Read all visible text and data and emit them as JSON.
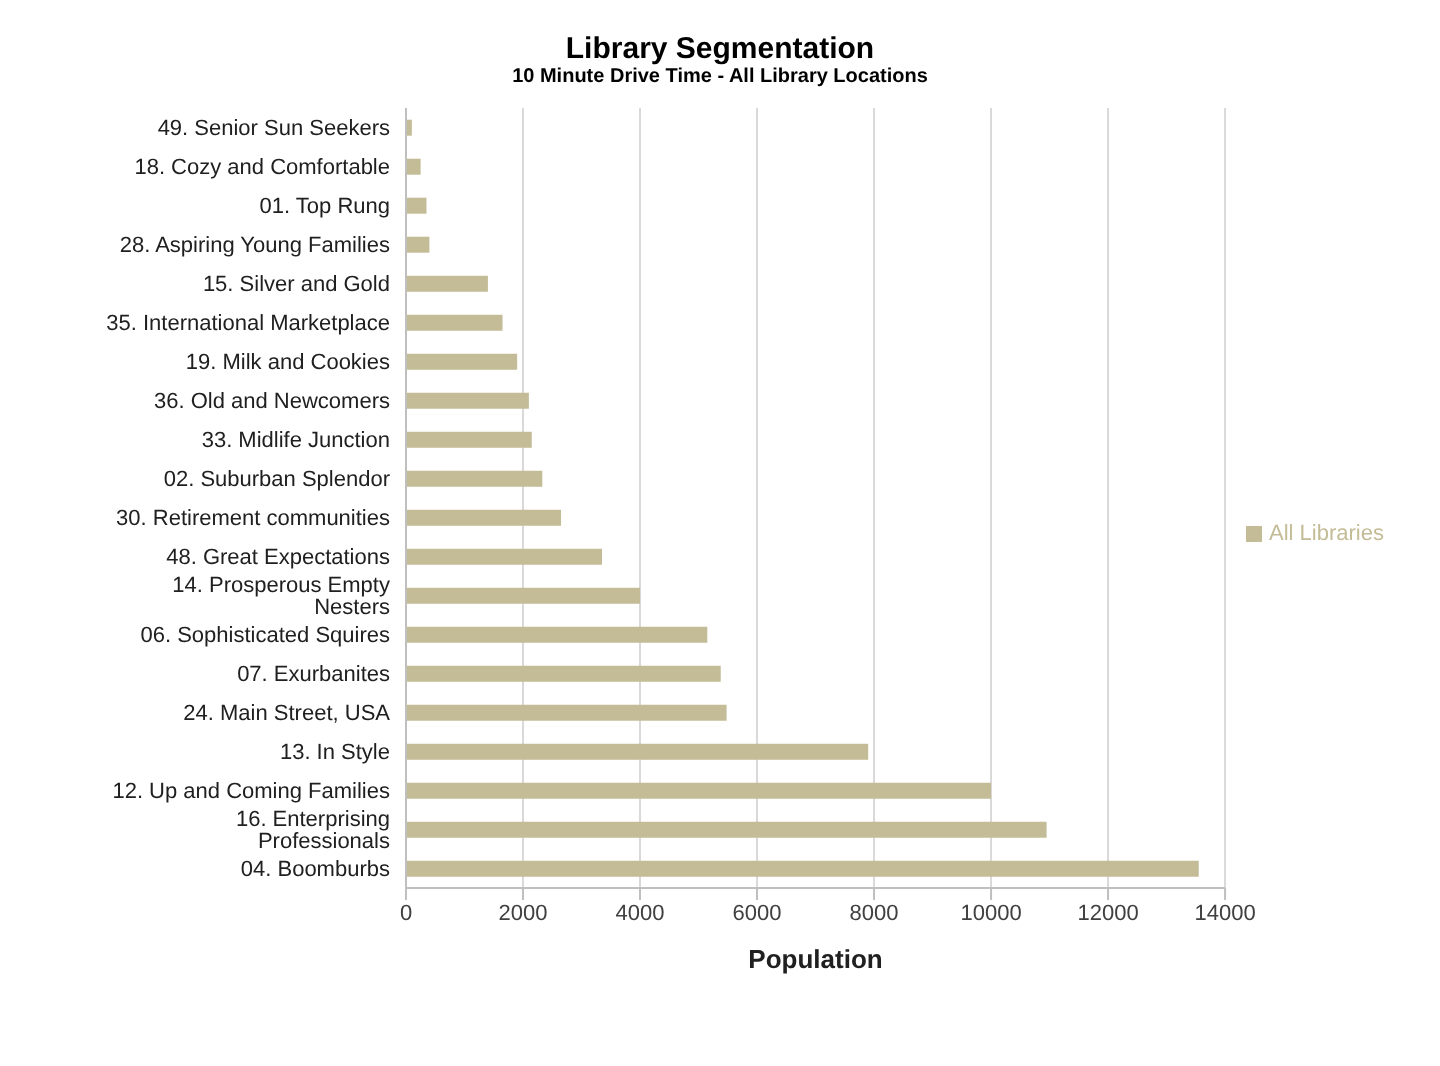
{
  "chart_data": {
    "type": "bar",
    "orientation": "horizontal",
    "title": "Library Segmentation",
    "subtitle": "10 Minute Drive Time - All Library Locations",
    "xlabel": "Population",
    "categories": [
      "49. Senior Sun Seekers",
      "18. Cozy and Comfortable",
      "01. Top Rung",
      "28. Aspiring Young Families",
      "15. Silver and Gold",
      "35. International Marketplace",
      "19. Milk and Cookies",
      "36. Old and Newcomers",
      "33. Midlife Junction",
      "02. Suburban Splendor",
      "30. Retirement communities",
      "48. Great Expectations",
      "14. Prosperous Empty Nesters",
      "06. Sophisticated Squires",
      "07. Exurbanites",
      "24. Main Street, USA",
      "13. In Style",
      "12. Up and Coming Families",
      "16. Enterprising Professionals",
      "04. Boomburbs"
    ],
    "series": [
      {
        "name": "All Libraries",
        "color": "#c4bc96",
        "values": [
          100,
          250,
          350,
          400,
          1400,
          1650,
          1900,
          2100,
          2150,
          2330,
          2650,
          3350,
          4000,
          5150,
          5380,
          5480,
          7900,
          10000,
          10950,
          13550
        ]
      }
    ],
    "xlim": [
      0,
      14000
    ],
    "xticks": [
      0,
      2000,
      4000,
      6000,
      8000,
      10000,
      12000,
      14000
    ],
    "grid": "x",
    "legend": "right"
  }
}
